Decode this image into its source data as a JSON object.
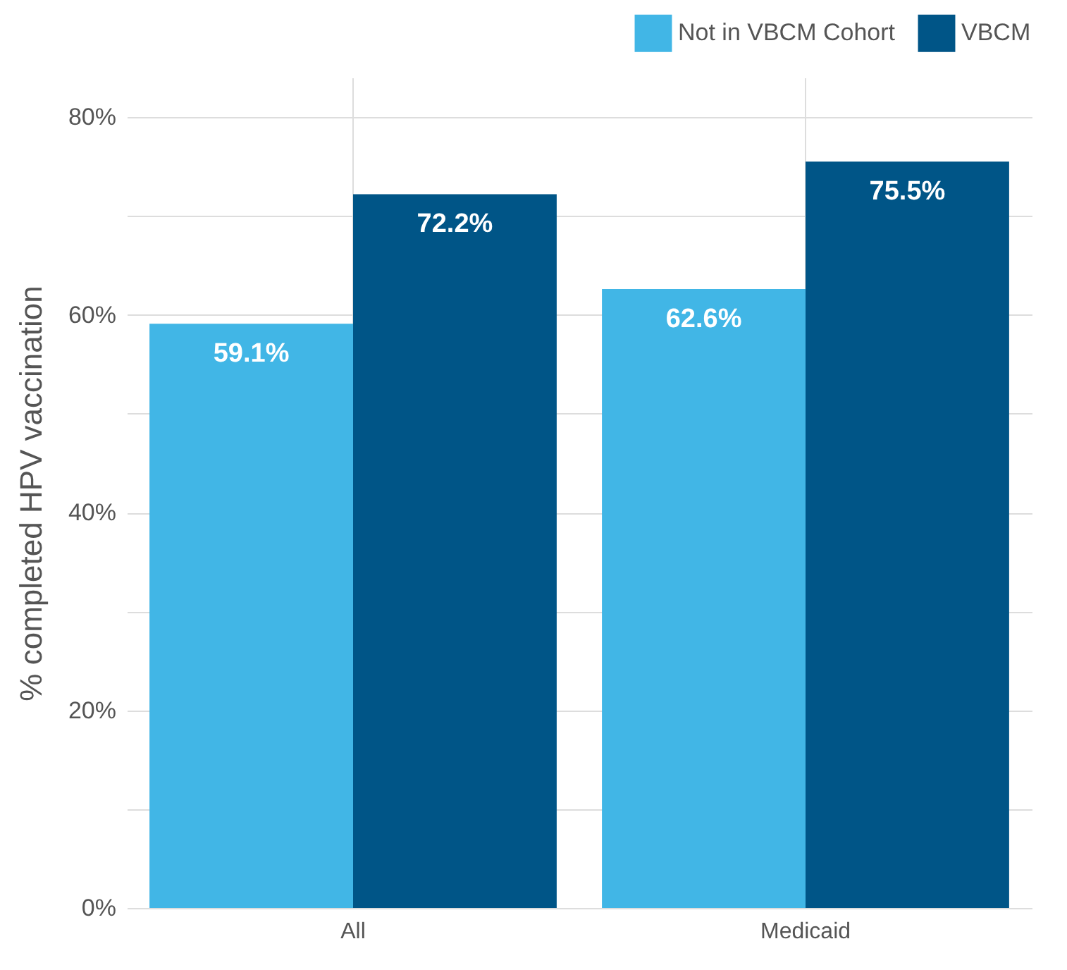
{
  "chart_data": {
    "type": "bar",
    "ylabel": "% completed HPV vaccination",
    "categories": [
      "All",
      "Medicaid"
    ],
    "series": [
      {
        "name": "Not in VBCM Cohort",
        "color": "#41b6e6",
        "values": [
          59.1,
          62.6
        ],
        "value_labels": [
          "59.1%",
          "62.6%"
        ]
      },
      {
        "name": "VBCM",
        "color": "#005587",
        "values": [
          72.2,
          75.5
        ],
        "value_labels": [
          "72.2%",
          "75.5%"
        ]
      }
    ],
    "ylim": [
      0,
      84
    ],
    "yticks": [
      {
        "value": 0,
        "label": "0%"
      },
      {
        "value": 10,
        "label": null
      },
      {
        "value": 20,
        "label": "20%"
      },
      {
        "value": 30,
        "label": null
      },
      {
        "value": 40,
        "label": "40%"
      },
      {
        "value": 50,
        "label": null
      },
      {
        "value": 60,
        "label": "60%"
      },
      {
        "value": 70,
        "label": null
      },
      {
        "value": 80,
        "label": "80%"
      }
    ],
    "grid": true,
    "legend": "top right"
  }
}
